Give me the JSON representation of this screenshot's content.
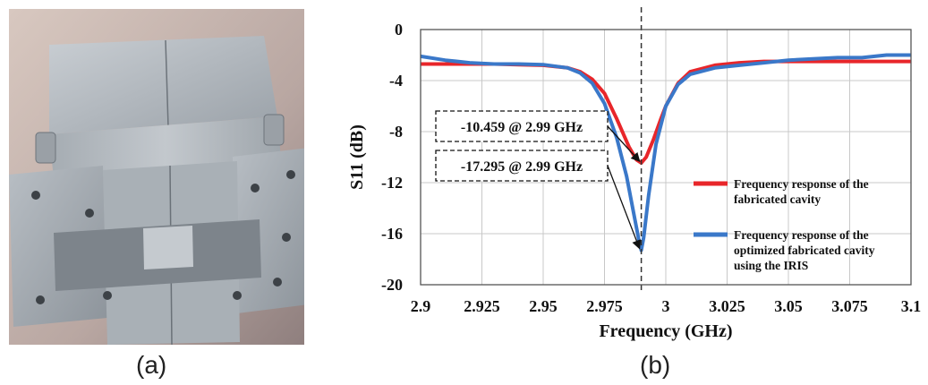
{
  "panels": {
    "left_label": "(a)",
    "right_label": "(b)"
  },
  "photo": {
    "subject": "aluminum-waveguide-cavity"
  },
  "chart_data": {
    "type": "line",
    "title": "",
    "xlabel": "Frequency (GHz)",
    "ylabel": "S11 (dB)",
    "xlim": [
      2.9,
      3.1
    ],
    "ylim": [
      -20,
      0
    ],
    "xticks": [
      "2.9",
      "2.925",
      "2.95",
      "2.975",
      "3",
      "3.025",
      "3.05",
      "3.075",
      "3.1"
    ],
    "xtick_values": [
      2.9,
      2.925,
      2.95,
      2.975,
      3.0,
      3.025,
      3.05,
      3.075,
      3.1
    ],
    "yticks": [
      "0",
      "-4",
      "-8",
      "-12",
      "-16",
      "-20"
    ],
    "ytick_values": [
      0,
      -4,
      -8,
      -12,
      -16,
      -20
    ],
    "grid": true,
    "legend_position": "right",
    "marker_frequency": 2.99,
    "series": [
      {
        "name": "Frequency response of the fabricated cavity",
        "legend_lines": [
          "Frequency response of the",
          "fabricated cavity"
        ],
        "color": "#e8262a",
        "x": [
          2.9,
          2.91,
          2.92,
          2.93,
          2.94,
          2.95,
          2.96,
          2.965,
          2.97,
          2.975,
          2.98,
          2.985,
          2.988,
          2.99,
          2.992,
          2.995,
          2.998,
          3.0,
          3.005,
          3.01,
          3.02,
          3.03,
          3.04,
          3.05,
          3.06,
          3.07,
          3.08,
          3.09,
          3.1
        ],
        "y": [
          -2.7,
          -2.7,
          -2.7,
          -2.7,
          -2.75,
          -2.8,
          -3.0,
          -3.3,
          -3.9,
          -5.0,
          -7.0,
          -9.2,
          -10.2,
          -10.459,
          -10.0,
          -8.6,
          -7.0,
          -6.0,
          -4.2,
          -3.3,
          -2.8,
          -2.6,
          -2.5,
          -2.5,
          -2.5,
          -2.5,
          -2.5,
          -2.5,
          -2.5
        ]
      },
      {
        "name": "Frequency response of the optimized fabricated cavity using the IRIS",
        "legend_lines": [
          "Frequency response of the",
          "optimized fabricated cavity",
          "using the IRIS"
        ],
        "color": "#3a78c9",
        "x": [
          2.9,
          2.91,
          2.92,
          2.93,
          2.94,
          2.95,
          2.96,
          2.965,
          2.97,
          2.975,
          2.98,
          2.984,
          2.987,
          2.989,
          2.99,
          2.991,
          2.993,
          2.996,
          3.0,
          3.005,
          3.01,
          3.02,
          3.03,
          3.04,
          3.05,
          3.06,
          3.07,
          3.08,
          3.09,
          3.1
        ],
        "y": [
          -2.1,
          -2.4,
          -2.6,
          -2.7,
          -2.7,
          -2.75,
          -3.0,
          -3.4,
          -4.2,
          -5.8,
          -8.5,
          -11.5,
          -14.5,
          -16.5,
          -17.295,
          -16.3,
          -13.0,
          -9.0,
          -6.0,
          -4.3,
          -3.5,
          -3.0,
          -2.8,
          -2.6,
          -2.4,
          -2.3,
          -2.2,
          -2.2,
          -2.0,
          -2.0
        ]
      }
    ],
    "annotations": [
      {
        "text": "-10.459 @ 2.99 GHz",
        "x": 2.99,
        "y": -10.459
      },
      {
        "text": "-17.295 @ 2.99 GHz",
        "x": 2.99,
        "y": -17.295
      }
    ]
  }
}
